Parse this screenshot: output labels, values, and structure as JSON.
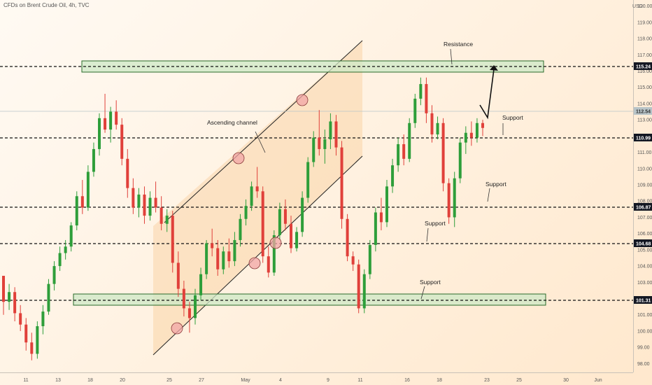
{
  "chart_title": "CFDs on Brent Crude Oil, 4h, TVC",
  "currency_label": "USD",
  "colors": {
    "up": "#2e9e3a",
    "down": "#e0403a",
    "channel_fill": "#f9cf9c",
    "zone_fill": "#cde8c5",
    "zone_stroke": "#2a6b2a"
  },
  "chart_data": {
    "type": "candlestick",
    "x_ticks": [
      "11",
      "13",
      "18",
      "20",
      "25",
      "27",
      "May",
      "4",
      "9",
      "11",
      "16",
      "18",
      "23",
      "25",
      "30",
      "Jun"
    ],
    "y_ticks": [
      "98.00",
      "99.00",
      "100.00",
      "101.00",
      "102.00",
      "103.00",
      "104.00",
      "105.00",
      "106.00",
      "107.00",
      "108.00",
      "109.00",
      "110.00",
      "111.00",
      "112.00",
      "113.00",
      "114.00",
      "115.00",
      "116.00",
      "117.00",
      "118.00",
      "119.00",
      "120.00"
    ],
    "ylim": [
      97.5,
      120.2
    ],
    "levels": [
      "115.24",
      "110.99",
      "106.87",
      "104.68",
      "101.31"
    ],
    "current_price": "112.54",
    "annotations": [
      "Resistance",
      "Ascending channel",
      "Support",
      "Support",
      "Support",
      "Support"
    ],
    "candles": [
      [
        103.4,
        103.3,
        101.0,
        101.8
      ],
      [
        101.8,
        102.9,
        101.3,
        102.4
      ],
      [
        102.4,
        102.7,
        100.6,
        101.1
      ],
      [
        101.1,
        101.6,
        100.0,
        100.4
      ],
      [
        100.4,
        100.8,
        98.8,
        99.3
      ],
      [
        99.3,
        99.9,
        98.2,
        98.6
      ],
      [
        98.6,
        100.6,
        98.3,
        100.3
      ],
      [
        100.3,
        101.6,
        99.8,
        101.2
      ],
      [
        101.2,
        103.2,
        101.0,
        102.9
      ],
      [
        102.9,
        104.3,
        102.5,
        104.0
      ],
      [
        104.0,
        105.2,
        103.7,
        104.8
      ],
      [
        104.8,
        105.6,
        104.4,
        105.2
      ],
      [
        105.2,
        106.7,
        104.9,
        106.5
      ],
      [
        106.5,
        108.6,
        106.2,
        108.3
      ],
      [
        108.3,
        109.3,
        107.2,
        107.6
      ],
      [
        107.6,
        110.2,
        107.4,
        109.8
      ],
      [
        109.8,
        111.6,
        109.5,
        111.2
      ],
      [
        111.2,
        113.4,
        110.8,
        113.1
      ],
      [
        113.1,
        114.6,
        112.2,
        112.4
      ],
      [
        112.4,
        113.8,
        111.6,
        113.5
      ],
      [
        113.5,
        114.2,
        112.4,
        112.7
      ],
      [
        112.7,
        113.1,
        110.2,
        110.6
      ],
      [
        110.6,
        111.2,
        108.2,
        108.8
      ],
      [
        108.8,
        109.4,
        107.2,
        107.6
      ],
      [
        107.6,
        108.8,
        107.0,
        108.4
      ],
      [
        108.4,
        108.9,
        106.6,
        107.1
      ],
      [
        107.1,
        108.6,
        106.8,
        108.2
      ],
      [
        108.2,
        109.2,
        107.3,
        107.6
      ],
      [
        107.6,
        108.3,
        106.2,
        106.6
      ],
      [
        106.6,
        107.5,
        106.1,
        107.1
      ],
      [
        107.1,
        107.4,
        103.6,
        104.2
      ],
      [
        104.2,
        104.9,
        102.1,
        102.6
      ],
      [
        102.6,
        103.1,
        100.9,
        101.4
      ],
      [
        101.4,
        101.8,
        99.9,
        100.8
      ],
      [
        100.8,
        102.6,
        100.4,
        102.2
      ],
      [
        102.2,
        103.9,
        101.9,
        103.5
      ],
      [
        103.5,
        105.6,
        103.2,
        105.4
      ],
      [
        105.4,
        106.3,
        104.6,
        105.1
      ],
      [
        105.1,
        105.6,
        103.4,
        103.8
      ],
      [
        103.8,
        105.2,
        103.5,
        104.9
      ],
      [
        104.9,
        105.7,
        103.9,
        104.3
      ],
      [
        104.3,
        106.1,
        104.0,
        105.6
      ],
      [
        105.6,
        107.2,
        105.2,
        106.9
      ],
      [
        106.9,
        108.1,
        106.5,
        107.7
      ],
      [
        107.7,
        109.2,
        107.4,
        108.9
      ],
      [
        108.9,
        110.1,
        108.2,
        108.6
      ],
      [
        108.6,
        108.9,
        104.2,
        104.6
      ],
      [
        104.6,
        105.2,
        103.3,
        103.6
      ],
      [
        103.6,
        106.2,
        103.4,
        105.9
      ],
      [
        105.9,
        107.9,
        105.6,
        107.5
      ],
      [
        107.5,
        108.1,
        106.2,
        106.6
      ],
      [
        106.6,
        107.1,
        104.8,
        105.1
      ],
      [
        105.1,
        106.4,
        104.9,
        106.1
      ],
      [
        106.1,
        108.6,
        105.8,
        108.2
      ],
      [
        108.2,
        110.7,
        107.9,
        110.4
      ],
      [
        110.4,
        112.3,
        110.1,
        111.9
      ],
      [
        111.9,
        113.6,
        110.8,
        111.2
      ],
      [
        111.2,
        112.4,
        110.3,
        111.8
      ],
      [
        111.8,
        113.4,
        111.2,
        112.9
      ],
      [
        112.9,
        113.3,
        110.8,
        111.3
      ],
      [
        111.3,
        111.7,
        106.3,
        106.9
      ],
      [
        106.9,
        107.2,
        104.3,
        104.6
      ],
      [
        104.6,
        104.9,
        103.7,
        104.1
      ],
      [
        104.1,
        104.4,
        101.1,
        101.4
      ],
      [
        101.4,
        103.8,
        101.1,
        103.5
      ],
      [
        103.5,
        105.6,
        103.2,
        105.3
      ],
      [
        105.3,
        107.6,
        104.9,
        107.3
      ],
      [
        107.3,
        108.2,
        106.2,
        106.7
      ],
      [
        106.7,
        109.3,
        106.4,
        108.9
      ],
      [
        108.9,
        110.6,
        108.5,
        110.2
      ],
      [
        110.2,
        111.9,
        109.8,
        111.5
      ],
      [
        111.5,
        112.1,
        110.2,
        110.6
      ],
      [
        110.6,
        113.1,
        110.4,
        112.8
      ],
      [
        112.8,
        114.6,
        112.5,
        114.3
      ],
      [
        114.3,
        115.6,
        113.9,
        115.2
      ],
      [
        115.2,
        115.6,
        112.8,
        113.4
      ],
      [
        113.4,
        113.9,
        111.6,
        112.1
      ],
      [
        112.1,
        113.2,
        111.8,
        112.8
      ],
      [
        112.8,
        113.1,
        108.6,
        109.1
      ],
      [
        109.1,
        109.4,
        106.6,
        107.0
      ],
      [
        107.0,
        109.8,
        106.4,
        109.4
      ],
      [
        109.4,
        111.9,
        109.1,
        111.6
      ],
      [
        111.6,
        112.6,
        110.9,
        112.2
      ],
      [
        112.2,
        112.9,
        111.4,
        111.9
      ],
      [
        111.9,
        113.1,
        111.6,
        112.8
      ],
      [
        112.8,
        113.0,
        112.0,
        112.5
      ]
    ]
  }
}
